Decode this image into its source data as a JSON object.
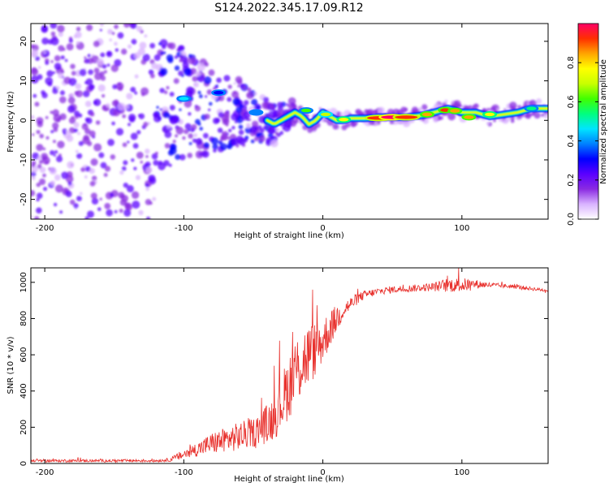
{
  "title": "S124.2022.345.17.09.R12",
  "chart_data": [
    {
      "type": "heatmap",
      "xlabel": "Height of straight line (km)",
      "ylabel": "Frequency (Hz)",
      "xlim": [
        -210,
        162
      ],
      "ylim": [
        -25,
        24.5
      ],
      "x_ticks": [
        -200,
        -100,
        0,
        100
      ],
      "y_ticks": [
        -20,
        -10,
        0,
        10,
        20
      ],
      "colorbar": {
        "label": "Normalized spectral amplitude",
        "range": [
          0,
          1
        ],
        "ticks": [
          "0.0",
          "0.2",
          "0.4",
          "0.6",
          "0.8"
        ],
        "colors": [
          "#ffffff",
          "#d9b3ff",
          "#8a2be2",
          "#5a00ff",
          "#0000ff",
          "#0080ff",
          "#00e5ff",
          "#00ff7f",
          "#40ff00",
          "#c8ff00",
          "#ffff00",
          "#ffa500",
          "#ff3000",
          "#ff0066"
        ]
      },
      "ridge": {
        "x": [
          -120,
          -110,
          -100,
          -90,
          -80,
          -70,
          -60,
          -50,
          -40,
          -35,
          -30,
          -25,
          -20,
          -15,
          -10,
          -5,
          0,
          5,
          10,
          15,
          20,
          30,
          40,
          50,
          60,
          70,
          80,
          90,
          100,
          110,
          120,
          130,
          140,
          150,
          162
        ],
        "freq": [
          5,
          4,
          5,
          4,
          3,
          2,
          2,
          1,
          0,
          -1,
          0,
          1,
          2,
          1,
          -1,
          0,
          2,
          1,
          0,
          0,
          0.5,
          0.5,
          0.8,
          0.8,
          0.8,
          1.2,
          2,
          3,
          2,
          2,
          1,
          1.5,
          2,
          3,
          3
        ]
      },
      "hotspots": [
        {
          "x": -100,
          "freq": 5.5,
          "amp": 0.45
        },
        {
          "x": -75,
          "freq": 7,
          "amp": 0.3
        },
        {
          "x": -48,
          "freq": 2,
          "amp": 0.4
        },
        {
          "x": -12,
          "freq": 2.5,
          "amp": 0.65
        },
        {
          "x": 2,
          "freq": 1.5,
          "amp": 0.7
        },
        {
          "x": 15,
          "freq": 0.2,
          "amp": 0.8
        },
        {
          "x": 40,
          "freq": 0.6,
          "amp": 0.95
        },
        {
          "x": 50,
          "freq": 0.8,
          "amp": 1.0
        },
        {
          "x": 60,
          "freq": 0.8,
          "amp": 0.95
        },
        {
          "x": 75,
          "freq": 1.5,
          "amp": 0.85
        },
        {
          "x": 88,
          "freq": 2.6,
          "amp": 0.9
        },
        {
          "x": 95,
          "freq": 2.4,
          "amp": 0.85
        },
        {
          "x": 105,
          "freq": 0.8,
          "amp": 0.85
        },
        {
          "x": 120,
          "freq": 1.5,
          "amp": 0.75
        },
        {
          "x": 150,
          "freq": 3,
          "amp": 0.55
        }
      ]
    },
    {
      "type": "line",
      "xlabel": "Height of straight line (km)",
      "ylabel": "SNR (10 * v/v)",
      "xlim": [
        -210,
        162
      ],
      "ylim": [
        0,
        1080
      ],
      "x_ticks": [
        -200,
        -100,
        0,
        100
      ],
      "y_ticks": [
        0,
        200,
        400,
        600,
        800,
        1000
      ],
      "color": "#e8302c",
      "series": [
        {
          "x": [
            -210,
            -180,
            -150,
            -120,
            -110,
            -100,
            -90,
            -80,
            -70,
            -60,
            -50,
            -40,
            -35,
            -30,
            -25,
            -20,
            -15,
            -10,
            -5,
            0,
            5,
            10,
            15,
            20,
            25,
            30,
            40,
            50,
            60,
            70,
            80,
            90,
            100,
            110,
            120,
            130,
            140,
            150,
            162
          ],
          "y": [
            15,
            15,
            15,
            15,
            20,
            50,
            80,
            110,
            130,
            150,
            170,
            220,
            260,
            330,
            420,
            500,
            560,
            600,
            630,
            680,
            740,
            800,
            850,
            880,
            910,
            930,
            950,
            960,
            965,
            970,
            975,
            985,
            985,
            990,
            985,
            980,
            975,
            965,
            955
          ],
          "noise": [
            8,
            8,
            8,
            8,
            10,
            30,
            40,
            60,
            70,
            80,
            80,
            110,
            130,
            150,
            180,
            200,
            200,
            180,
            150,
            130,
            100,
            80,
            50,
            40,
            30,
            25,
            20,
            20,
            20,
            20,
            25,
            40,
            40,
            25,
            15,
            12,
            12,
            10,
            10
          ]
        }
      ]
    }
  ]
}
